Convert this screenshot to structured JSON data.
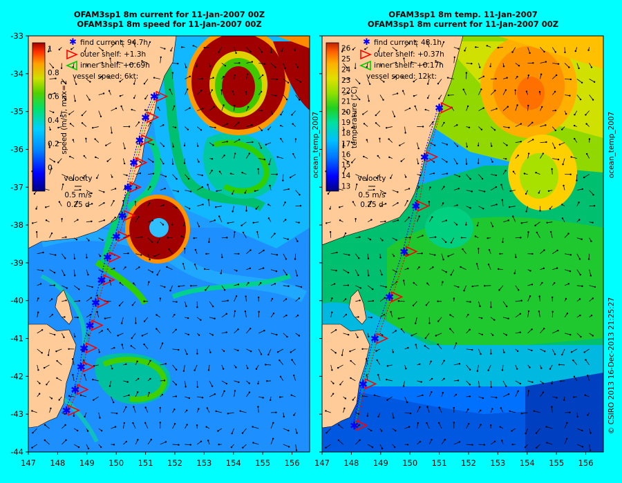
{
  "left": {
    "title1": "OFAM3sp1 8m current for 11-Jan-2007 00Z",
    "title2": "OFAM3sp1 8m speed for 11-Jan-2007 00Z",
    "legend": {
      "find": "find current: 94.7h",
      "outer": "outer shelf: +1.3h",
      "inner": "inner shelf: +0.69h",
      "vessel": "vessel speed: 6kt:"
    },
    "colorbar": {
      "label": "speed (m/s), max=2",
      "ticks": [
        "1",
        "0.8",
        "0.6",
        "0.4",
        "0.2",
        "0"
      ],
      "tick_values": [
        1,
        0.8,
        0.6,
        0.4,
        0.2,
        0
      ]
    },
    "velocity_key": {
      "title": "velocity",
      "speed": "0.5 m/s",
      "days": "0.25 d"
    }
  },
  "right": {
    "title1": "OFAM3sp1 8m temp. 11-Jan-2007",
    "title2": "OFAM3sp1 8m current for 11-Jan-2007 00Z",
    "legend": {
      "find": "find current: 48.1h",
      "outer": "outer shelf: +0.37h",
      "inner": "inner shelf: +0.17h",
      "vessel": "vessel speed: 12kt:"
    },
    "colorbar": {
      "label": "temperature (°C)",
      "ticks": [
        "26",
        "25",
        "24",
        "23",
        "22",
        "21",
        "20",
        "19",
        "18",
        "17",
        "16",
        "15",
        "14",
        "13"
      ],
      "tick_values": [
        26,
        25,
        24,
        23,
        22,
        21,
        20,
        19,
        18,
        17,
        16,
        15,
        14,
        13
      ]
    },
    "velocity_key": {
      "title": "velocity",
      "speed": "0.5 m/s",
      "days": "0.25 d"
    },
    "side_label": "ocean_temp_2007"
  },
  "axes": {
    "x_ticks": [
      "147",
      "148",
      "149",
      "150",
      "151",
      "152",
      "153",
      "154",
      "155",
      "156"
    ],
    "x_values": [
      147,
      148,
      149,
      150,
      151,
      152,
      153,
      154,
      155,
      156
    ],
    "x_range": [
      147,
      156.6
    ],
    "y_ticks": [
      "-33",
      "-34",
      "-35",
      "-36",
      "-37",
      "-38",
      "-39",
      "-40",
      "-41",
      "-42",
      "-43",
      "-44"
    ],
    "y_values": [
      -33,
      -34,
      -35,
      -36,
      -37,
      -38,
      -39,
      -40,
      -41,
      -42,
      -43,
      -44
    ],
    "y_range": [
      -44,
      -33
    ]
  },
  "credit": "© CSIRO 2013  16-Dec-2013 21:25:27",
  "colors": {
    "background": "#00ffff",
    "land": "#ffcc99",
    "find_marker": "#0000ff",
    "outer_marker": "#ff0000",
    "inner_marker": "#00cc00"
  },
  "left_track": {
    "stations": [
      [
        151.3,
        -34.6
      ],
      [
        151.0,
        -35.15
      ],
      [
        150.8,
        -35.75
      ],
      [
        150.6,
        -36.35
      ],
      [
        150.4,
        -37.0
      ],
      [
        150.2,
        -37.75
      ],
      [
        150.0,
        -38.3
      ],
      [
        149.7,
        -38.85
      ],
      [
        149.5,
        -39.45
      ],
      [
        149.3,
        -40.05
      ],
      [
        149.1,
        -40.65
      ],
      [
        148.9,
        -41.25
      ],
      [
        148.8,
        -41.75
      ],
      [
        148.6,
        -42.35
      ],
      [
        148.3,
        -42.9
      ]
    ]
  },
  "right_track": {
    "stations": [
      [
        151.0,
        -34.9
      ],
      [
        150.5,
        -36.2
      ],
      [
        150.2,
        -37.5
      ],
      [
        149.8,
        -38.7
      ],
      [
        149.3,
        -39.9
      ],
      [
        148.8,
        -41.0
      ],
      [
        148.4,
        -42.2
      ],
      [
        148.1,
        -43.3
      ]
    ]
  }
}
